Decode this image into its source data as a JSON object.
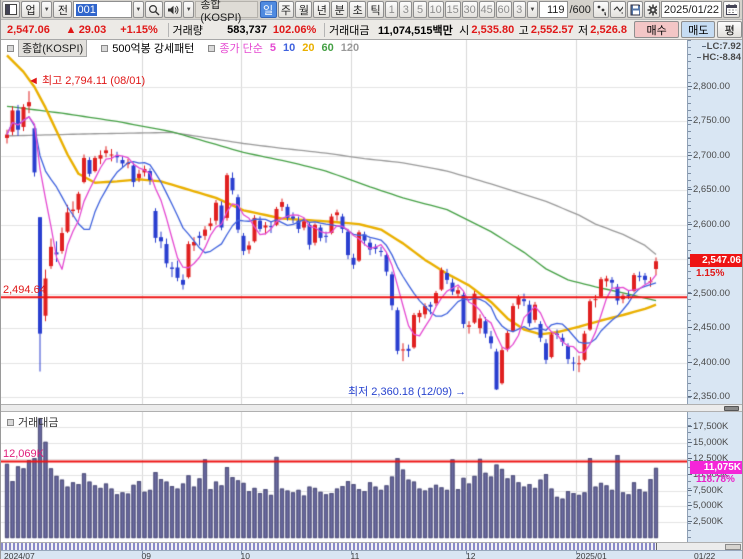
{
  "toolbar": {
    "industry_button": "업",
    "all_button": "전",
    "code_value": "001",
    "symbol_name": "종합(KOSPI)",
    "periods": [
      "일",
      "주",
      "월",
      "년",
      "분",
      "초",
      "틱"
    ],
    "minutes": [
      "1",
      "3",
      "5",
      "10",
      "15",
      "30",
      "45",
      "60"
    ],
    "minute_extra": "3",
    "bar_count": "119",
    "bar_total": "/600",
    "date": "2025/01/22"
  },
  "info_bar": {
    "price": "2,547.06",
    "arrow": "▲",
    "change": "29.03",
    "change_pct": "+1.15%",
    "volume_label": "거래량",
    "volume": "583,737",
    "volume_pct": "102.06%",
    "value_label": "거래대금",
    "value": "11,074,515백만",
    "open_label": "시",
    "open": "2,535.80",
    "high_label": "고",
    "high": "2,552.57",
    "low_label": "저",
    "low": "2,526.8",
    "buy_button": "매수",
    "sell_button": "매도",
    "avg_button": "평"
  },
  "legend": {
    "main": "종합(KOSPI)",
    "pattern": "500억봉 강세패턴",
    "ma_label": "종가 단순",
    "ma_periods": [
      "5",
      "10",
      "20",
      "60",
      "120"
    ]
  },
  "volume_legend": "거래대금",
  "annotations": {
    "high": "최고 2,794.11 (08/01)",
    "high_arrow": "◄",
    "low": "최저 2,360.18 (12/09)",
    "low_arrow": "→",
    "price_line_label": "2,494.64",
    "volume_line_label": "12,069K",
    "lc": "LC:7.92",
    "hc": "HC:-8.84"
  },
  "badges": {
    "price": "2,547.06",
    "price_pct": "1.15%",
    "volume": "11,075K",
    "volume_pct": "118.78%"
  },
  "chart_data": {
    "type": "candlestick",
    "title": "종합(KOSPI) 일봉",
    "ylim": [
      2350,
      2800
    ],
    "price_ticks": [
      {
        "v": 2800,
        "t": "2,800.00"
      },
      {
        "v": 2750,
        "t": "2,750.00"
      },
      {
        "v": 2700,
        "t": "2,700.00"
      },
      {
        "v": 2650,
        "t": "2,650.00"
      },
      {
        "v": 2600,
        "t": "2,600.00"
      },
      {
        "v": 2550,
        "t": "2,550.00"
      },
      {
        "v": 2500,
        "t": "2,500.00"
      },
      {
        "v": 2450,
        "t": "2,450.00"
      },
      {
        "v": 2400,
        "t": "2,400.00"
      },
      {
        "v": 2350,
        "t": "2,350.00"
      }
    ],
    "volume_ticks": [
      {
        "v": 17500,
        "t": "17,500K"
      },
      {
        "v": 15000,
        "t": "15,000K"
      },
      {
        "v": 12500,
        "t": "12,500K"
      },
      {
        "v": 10000,
        "t": "10,000K"
      },
      {
        "v": 7500,
        "t": "7,500K"
      },
      {
        "v": 5000,
        "t": "5,000K"
      },
      {
        "v": 2500,
        "t": "2,500K"
      }
    ],
    "price_alert_line": 2494.64,
    "volume_alert_line": 12069,
    "last_price": 2547.06,
    "last_volume": 11075,
    "high_point": {
      "value": 2794.11,
      "index": 4
    },
    "low_point": {
      "value": 2360.18,
      "index": 89
    },
    "x_axis": {
      "labels": [
        {
          "text": "2024/07",
          "index": 0
        },
        {
          "text": "09",
          "index": 25
        },
        {
          "text": "10",
          "index": 43
        },
        {
          "text": "11",
          "index": 63
        },
        {
          "text": "12",
          "index": 84
        },
        {
          "text": "2025/01",
          "index": 104
        }
      ],
      "end_label": "01/22"
    },
    "colors": {
      "up": "#e02020",
      "down": "#2a3fd0",
      "ma5": "#e54ad2",
      "ma10": "#3f62de",
      "ma20": "#eab000",
      "ma60": "#44a044",
      "ma120": "#9a9a9a",
      "volume_bar": "#6a6aa2",
      "alert": "#ee1414",
      "grid": "#e4e4e4",
      "vgrid": "#d8d8d8"
    },
    "ma_control_points": {
      "ma20": [
        [
          0,
          2846
        ],
        [
          3,
          2822
        ],
        [
          5,
          2800
        ],
        [
          7,
          2770
        ],
        [
          9,
          2736
        ],
        [
          11,
          2702
        ],
        [
          13,
          2674
        ],
        [
          16,
          2661
        ],
        [
          20,
          2663
        ],
        [
          24,
          2666
        ],
        [
          28,
          2663
        ],
        [
          33,
          2651
        ],
        [
          38,
          2639
        ],
        [
          43,
          2621
        ],
        [
          50,
          2609
        ],
        [
          58,
          2605
        ],
        [
          64,
          2601
        ],
        [
          68,
          2593
        ],
        [
          72,
          2573
        ],
        [
          76,
          2549
        ],
        [
          80,
          2529
        ],
        [
          84,
          2512
        ],
        [
          88,
          2488
        ],
        [
          91,
          2464
        ],
        [
          94,
          2448
        ],
        [
          97,
          2441
        ],
        [
          100,
          2444
        ],
        [
          104,
          2452
        ],
        [
          108,
          2461
        ],
        [
          112,
          2469
        ],
        [
          116,
          2478
        ],
        [
          118,
          2484
        ]
      ],
      "ma60": [
        [
          0,
          2772
        ],
        [
          10,
          2762
        ],
        [
          20,
          2750
        ],
        [
          30,
          2735
        ],
        [
          43,
          2705
        ],
        [
          52,
          2690
        ],
        [
          58,
          2678
        ],
        [
          66,
          2655
        ],
        [
          72,
          2639
        ],
        [
          80,
          2622
        ],
        [
          88,
          2590
        ],
        [
          94,
          2560
        ],
        [
          98,
          2536
        ],
        [
          102,
          2520
        ],
        [
          107,
          2510
        ],
        [
          112,
          2501
        ],
        [
          118,
          2490
        ]
      ],
      "ma120": [
        [
          0,
          2729
        ],
        [
          15,
          2732
        ],
        [
          30,
          2734
        ],
        [
          43,
          2718
        ],
        [
          50,
          2711
        ],
        [
          58,
          2704
        ],
        [
          65,
          2696
        ],
        [
          72,
          2690
        ],
        [
          80,
          2678
        ],
        [
          89,
          2657
        ],
        [
          98,
          2634
        ],
        [
          104,
          2614
        ],
        [
          107,
          2601
        ],
        [
          112,
          2586
        ],
        [
          116,
          2570
        ],
        [
          118,
          2557
        ]
      ]
    },
    "candles": [
      [
        2726,
        2738,
        2718,
        2731,
        11700
      ],
      [
        2735,
        2772,
        2730,
        2766,
        9000
      ],
      [
        2766,
        2774,
        2729,
        2738,
        11300
      ],
      [
        2742,
        2775,
        2736,
        2771,
        11000
      ],
      [
        2772,
        2794,
        2762,
        2778,
        12300
      ],
      [
        2740,
        2745,
        2670,
        2676,
        12600
      ],
      [
        2611,
        2611,
        2387,
        2442,
        18900
      ],
      [
        2468,
        2535,
        2460,
        2522,
        15200
      ],
      [
        2540,
        2580,
        2536,
        2568,
        11000
      ],
      [
        2560,
        2576,
        2546,
        2557,
        9800
      ],
      [
        2562,
        2596,
        2558,
        2588,
        9200
      ],
      [
        2590,
        2629,
        2588,
        2618,
        8100
      ],
      [
        2620,
        2634,
        2611,
        2622,
        8800
      ],
      [
        2622,
        2648,
        2617,
        2645,
        8500
      ],
      [
        2662,
        2702,
        2660,
        2697,
        10200
      ],
      [
        2694,
        2698,
        2670,
        2674,
        8900
      ],
      [
        2678,
        2700,
        2676,
        2697,
        8300
      ],
      [
        2696,
        2708,
        2688,
        2701,
        7900
      ],
      [
        2704,
        2714,
        2698,
        2708,
        8600
      ],
      [
        2702,
        2710,
        2692,
        2702,
        7800
      ],
      [
        2700,
        2706,
        2690,
        2698,
        6900
      ],
      [
        2694,
        2700,
        2684,
        2689,
        7200
      ],
      [
        2688,
        2696,
        2682,
        2690,
        7000
      ],
      [
        2686,
        2690,
        2655,
        2662,
        8400
      ],
      [
        2668,
        2680,
        2662,
        2674,
        9000
      ],
      [
        2676,
        2686,
        2670,
        2681,
        7300
      ],
      [
        2678,
        2682,
        2658,
        2665,
        7600
      ],
      [
        2620,
        2624,
        2574,
        2581,
        10400
      ],
      [
        2582,
        2590,
        2566,
        2576,
        9300
      ],
      [
        2572,
        2580,
        2538,
        2544,
        8900
      ],
      [
        2538,
        2546,
        2524,
        2536,
        8200
      ],
      [
        2538,
        2548,
        2518,
        2523,
        7800
      ],
      [
        2520,
        2528,
        2506,
        2513,
        8600
      ],
      [
        2524,
        2576,
        2522,
        2572,
        9900
      ],
      [
        2570,
        2582,
        2562,
        2575,
        8100
      ],
      [
        2584,
        2590,
        2570,
        2581,
        9400
      ],
      [
        2584,
        2598,
        2578,
        2593,
        12400
      ],
      [
        2598,
        2610,
        2592,
        2602,
        7700
      ],
      [
        2606,
        2636,
        2600,
        2632,
        8900
      ],
      [
        2628,
        2634,
        2592,
        2596,
        8300
      ],
      [
        2610,
        2675,
        2606,
        2672,
        11200
      ],
      [
        2668,
        2676,
        2644,
        2650,
        9600
      ],
      [
        2640,
        2644,
        2588,
        2593,
        9100
      ],
      [
        2584,
        2588,
        2556,
        2562,
        8700
      ],
      [
        2564,
        2576,
        2558,
        2570,
        7400
      ],
      [
        2576,
        2614,
        2574,
        2610,
        7900
      ],
      [
        2606,
        2612,
        2590,
        2594,
        7100
      ],
      [
        2596,
        2604,
        2586,
        2599,
        7700
      ],
      [
        2598,
        2604,
        2588,
        2597,
        6800
      ],
      [
        2600,
        2626,
        2598,
        2623,
        12800
      ],
      [
        2626,
        2638,
        2620,
        2633,
        7800
      ],
      [
        2626,
        2630,
        2606,
        2610,
        7500
      ],
      [
        2612,
        2618,
        2602,
        2609,
        7200
      ],
      [
        2606,
        2612,
        2588,
        2594,
        7600
      ],
      [
        2596,
        2610,
        2592,
        2605,
        6700
      ],
      [
        2600,
        2604,
        2564,
        2571,
        8100
      ],
      [
        2574,
        2602,
        2570,
        2600,
        7900
      ],
      [
        2596,
        2600,
        2576,
        2581,
        7300
      ],
      [
        2584,
        2590,
        2574,
        2583,
        6900
      ],
      [
        2588,
        2616,
        2586,
        2612,
        7100
      ],
      [
        2614,
        2622,
        2606,
        2618,
        7800
      ],
      [
        2612,
        2616,
        2588,
        2594,
        8200
      ],
      [
        2590,
        2594,
        2550,
        2556,
        9000
      ],
      [
        2552,
        2558,
        2536,
        2542,
        8500
      ],
      [
        2548,
        2592,
        2546,
        2589,
        7700
      ],
      [
        2586,
        2590,
        2570,
        2577,
        7400
      ],
      [
        2574,
        2580,
        2556,
        2564,
        8800
      ],
      [
        2568,
        2572,
        2558,
        2565,
        8100
      ],
      [
        2562,
        2568,
        2554,
        2561,
        7600
      ],
      [
        2556,
        2560,
        2526,
        2532,
        8300
      ],
      [
        2528,
        2532,
        2476,
        2483,
        9700
      ],
      [
        2476,
        2480,
        2412,
        2417,
        12600
      ],
      [
        2418,
        2428,
        2402,
        2419,
        10800
      ],
      [
        2420,
        2426,
        2408,
        2417,
        9200
      ],
      [
        2422,
        2472,
        2420,
        2469,
        8900
      ],
      [
        2466,
        2476,
        2458,
        2472,
        7800
      ],
      [
        2470,
        2486,
        2464,
        2482,
        7500
      ],
      [
        2484,
        2488,
        2470,
        2481,
        7900
      ],
      [
        2486,
        2504,
        2482,
        2501,
        8400
      ],
      [
        2506,
        2538,
        2504,
        2534,
        8000
      ],
      [
        2530,
        2536,
        2514,
        2520,
        7600
      ],
      [
        2516,
        2522,
        2498,
        2503,
        12400
      ],
      [
        2500,
        2510,
        2494,
        2505,
        7700
      ],
      [
        2498,
        2502,
        2450,
        2456,
        9500
      ],
      [
        2452,
        2460,
        2442,
        2454,
        8600
      ],
      [
        2458,
        2504,
        2456,
        2500,
        9800
      ],
      [
        2450,
        2470,
        2442,
        2464,
        12500
      ],
      [
        2460,
        2466,
        2436,
        2442,
        10300
      ],
      [
        2438,
        2446,
        2420,
        2428,
        9700
      ],
      [
        2416,
        2420,
        2360.2,
        2361,
        11600
      ],
      [
        2370,
        2422,
        2368,
        2418,
        10900
      ],
      [
        2420,
        2446,
        2416,
        2443,
        9400
      ],
      [
        2446,
        2486,
        2444,
        2482,
        9900
      ],
      [
        2484,
        2498,
        2478,
        2494,
        8800
      ],
      [
        2492,
        2500,
        2482,
        2489,
        8100
      ],
      [
        2484,
        2490,
        2452,
        2457,
        8500
      ],
      [
        2462,
        2488,
        2458,
        2484,
        7900
      ],
      [
        2456,
        2460,
        2430,
        2436,
        9200
      ],
      [
        2428,
        2434,
        2398,
        2404,
        10100
      ],
      [
        2408,
        2444,
        2406,
        2441,
        7800
      ],
      [
        2442,
        2448,
        2434,
        2440,
        6500
      ],
      [
        2436,
        2442,
        2424,
        2430,
        6200
      ],
      [
        2424,
        2428,
        2398,
        2405,
        7400
      ],
      [
        2400,
        2408,
        2388,
        2399,
        7100
      ],
      [
        2398,
        2410,
        2386,
        2399,
        6800
      ],
      [
        2404,
        2446,
        2402,
        2442,
        7200
      ],
      [
        2448,
        2492,
        2446,
        2489,
        12600
      ],
      [
        2492,
        2498,
        2480,
        2492,
        8100
      ],
      [
        2496,
        2524,
        2494,
        2521,
        8700
      ],
      [
        2518,
        2526,
        2510,
        2522,
        8300
      ],
      [
        2520,
        2524,
        2508,
        2516,
        7600
      ],
      [
        2510,
        2514,
        2484,
        2490,
        13100
      ],
      [
        2492,
        2500,
        2486,
        2497,
        7200
      ],
      [
        2498,
        2504,
        2492,
        2497,
        6900
      ],
      [
        2504,
        2530,
        2502,
        2527,
        8800
      ],
      [
        2526,
        2532,
        2518,
        2524,
        7700
      ],
      [
        2526,
        2530,
        2514,
        2520,
        7300
      ],
      [
        2518,
        2524,
        2510,
        2518,
        9300
      ],
      [
        2535.8,
        2552.57,
        2526.8,
        2547.06,
        11075
      ]
    ]
  }
}
